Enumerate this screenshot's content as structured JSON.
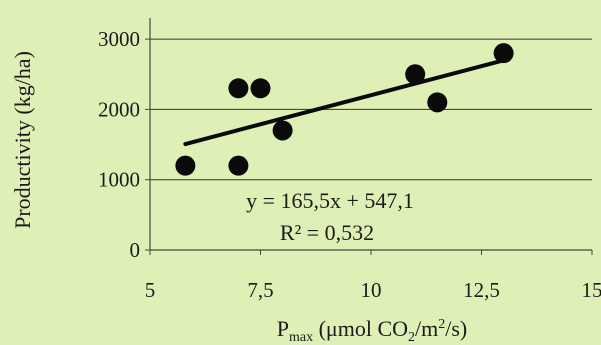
{
  "chart_data": {
    "type": "scatter",
    "title": "",
    "xlabel_main": "P",
    "xlabel_sub": "max",
    "xlabel_rest_1": " (μmol CO",
    "xlabel_sub2": "2",
    "xlabel_rest_2": "/m",
    "xlabel_sup": "2",
    "xlabel_rest_3": "/s)",
    "ylabel": "Productivity (kg/ha)",
    "xlim": [
      5,
      15
    ],
    "ylim": [
      0,
      3300
    ],
    "xticks": [
      5,
      7.5,
      10,
      12.5,
      15
    ],
    "xtick_labels": [
      "5",
      "7,5",
      "10",
      "12,5",
      "15"
    ],
    "yticks": [
      0,
      1000,
      2000,
      3000
    ],
    "ytick_labels": [
      "0",
      "1000",
      "2000",
      "3000"
    ],
    "y_gridlines": true,
    "points": [
      {
        "x": 5.8,
        "y": 1200
      },
      {
        "x": 7.0,
        "y": 1200
      },
      {
        "x": 7.0,
        "y": 2300
      },
      {
        "x": 7.5,
        "y": 2300
      },
      {
        "x": 8.0,
        "y": 1700
      },
      {
        "x": 11.0,
        "y": 2500
      },
      {
        "x": 11.5,
        "y": 2100
      },
      {
        "x": 13.0,
        "y": 2800
      }
    ],
    "trendline": {
      "slope": 165.5,
      "intercept": 547.1,
      "x_range": [
        5.8,
        13.0
      ],
      "equation_text": "y = 165,5x + 547,1",
      "r2_text": "R² = 0,532"
    },
    "colors": {
      "points": "#0a0a0a",
      "trendline": "#0a0a0a",
      "axes": "#444444",
      "grid": "#333333"
    }
  }
}
